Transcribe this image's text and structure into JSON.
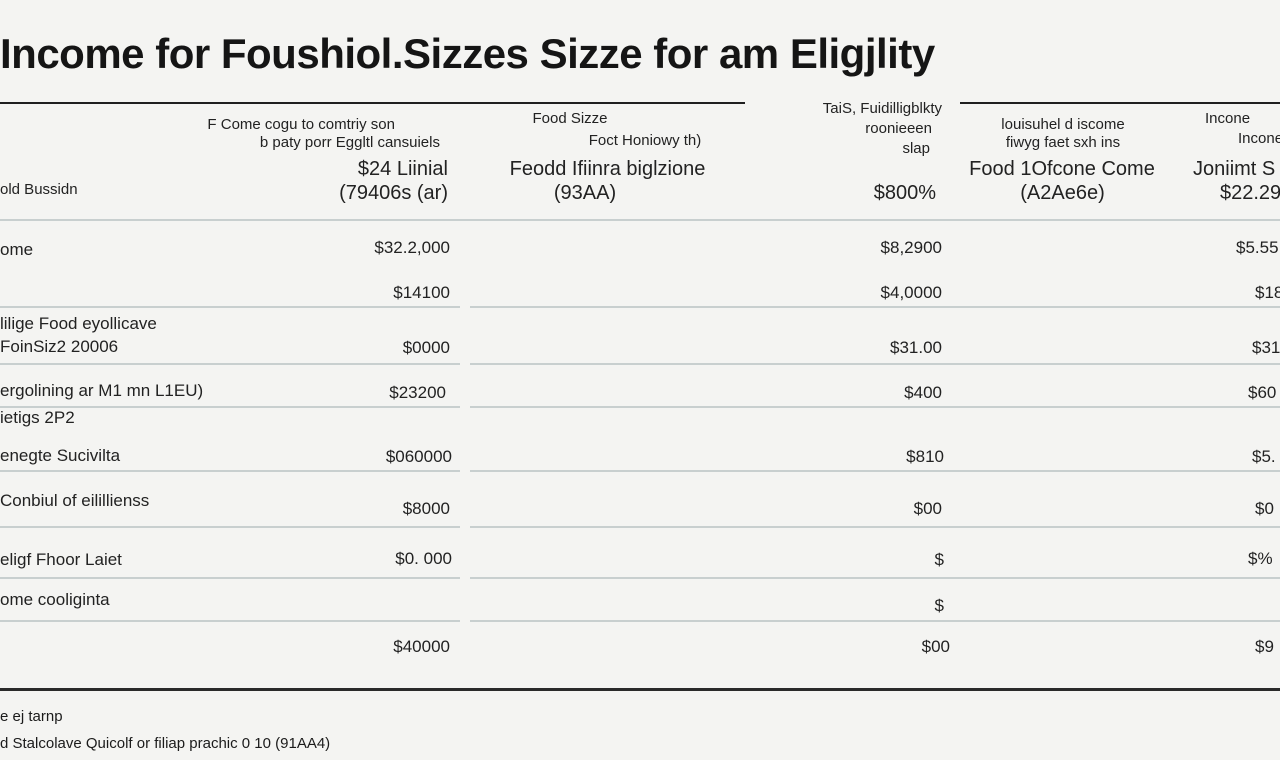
{
  "title": "Income for Foushiol.Sizzes Sizze for am Eligjlity",
  "header": {
    "row_label": "old Bussidn",
    "col1": {
      "lines": [
        "F Come cogu to comtriy son",
        "b paty porr Eggltl cansuiels",
        "$24 Liinial",
        "(79406s (ar)"
      ]
    },
    "col2": {
      "lines": [
        "Food Sizze",
        "Foct Honiowy th)",
        "Feodd Ifiinra biglzione",
        "(93AA)"
      ]
    },
    "col3": {
      "lines": [
        "TaiS, Fuidilligblkty",
        "roonieeen",
        "slap",
        "$800%"
      ]
    },
    "col4": {
      "lines": [
        "louisuhel d iscome",
        "fiwyg faet sxh ins",
        "Food 1Ofcone Come",
        "(A2Ae6e)"
      ]
    },
    "col5": {
      "lines": [
        "Incone",
        "Incone",
        "Joniimt S",
        "$22.29"
      ]
    }
  },
  "rows": [
    {
      "label": "ome",
      "c1": "$32.2,000",
      "c3": "$8,2900",
      "c5": "$5.55"
    },
    {
      "label": "",
      "c1": "$14100",
      "c3": "$4,0000",
      "c5": "$18"
    },
    {
      "label": "lilige Food eyollicave",
      "sub": "FoinSiz2 20006",
      "c1": "$0000",
      "c3": "$31.00",
      "c5": "$31"
    },
    {
      "label": "ergolining ar M1 mn L1EU)",
      "c1": "$23200",
      "c3": "$400",
      "c5": "$60"
    },
    {
      "label": "ietigs 2P2",
      "c1": "",
      "c3": "",
      "c5": ""
    },
    {
      "label": "enegte Sucivilta",
      "c1": "$060000",
      "c3": "$810",
      "c5": "$5."
    },
    {
      "label": "Conbiul of eilillienss",
      "c1": "$8000",
      "c3": "$00",
      "c5": "$0"
    },
    {
      "label": "eligf Fhoor Laiet",
      "c1": "$0. 000",
      "c3": "$",
      "c5": "$%"
    },
    {
      "label": "ome cooliginta",
      "c1": "",
      "c3": "$",
      "c5": ""
    },
    {
      "label": "",
      "c1": "$40000",
      "c3": "$00",
      "c5": "$9"
    }
  ],
  "footer": {
    "line1": "e ej tarnp",
    "line2": "d Stalcolave Quicolf or filiap prachic 0 10 (91AA4)"
  }
}
